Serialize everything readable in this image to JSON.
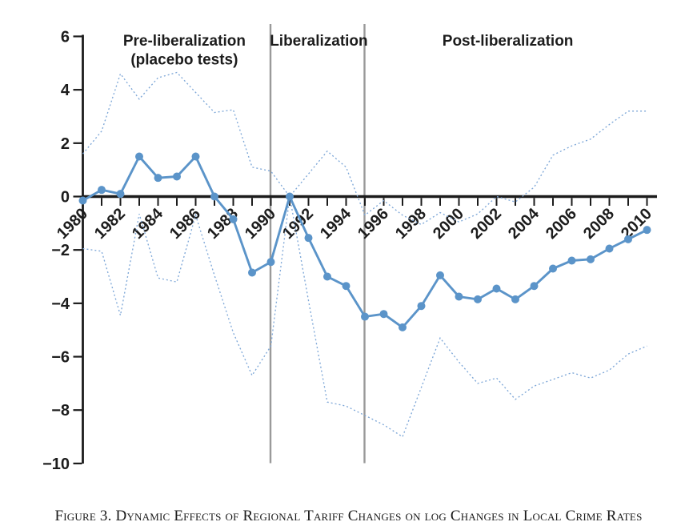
{
  "figure": {
    "caption": "Figure 3. Dynamic Effects of Regional Tariff Changes on log Changes in Local Crime Rates"
  },
  "chart_data": {
    "type": "line",
    "title": "",
    "xlabel": "",
    "ylabel": "",
    "ylim": [
      -10,
      6
    ],
    "y_ticks": [
      6,
      4,
      2,
      0,
      -2,
      -4,
      -6,
      -8,
      -10
    ],
    "x": [
      1980,
      1981,
      1982,
      1983,
      1984,
      1985,
      1986,
      1987,
      1988,
      1989,
      1990,
      1991,
      1992,
      1993,
      1994,
      1995,
      1996,
      1997,
      1998,
      1999,
      2000,
      2001,
      2002,
      2003,
      2004,
      2005,
      2006,
      2007,
      2008,
      2009,
      2010
    ],
    "x_tick_label_years": [
      1980,
      1982,
      1984,
      1986,
      1988,
      1990,
      1992,
      1994,
      1996,
      1998,
      2000,
      2002,
      2004,
      2006,
      2008,
      2010
    ],
    "series": [
      {
        "name": "point-estimate",
        "style": "solid-markers",
        "values": [
          -0.15,
          0.25,
          0.1,
          1.5,
          0.7,
          0.75,
          1.5,
          0.0,
          -0.85,
          -2.85,
          -2.45,
          0.0,
          -1.55,
          -3.0,
          -3.35,
          -4.5,
          -4.4,
          -4.9,
          -4.1,
          -2.95,
          -3.75,
          -3.85,
          -3.45,
          -3.85,
          -3.35,
          -2.7,
          -2.4,
          -2.35,
          -1.95,
          -1.6,
          -1.25
        ]
      },
      {
        "name": "upper-95-ci",
        "style": "dashed",
        "values": [
          1.6,
          2.45,
          4.6,
          3.65,
          4.45,
          4.65,
          3.9,
          3.15,
          3.25,
          1.1,
          0.95,
          0.0,
          0.85,
          1.7,
          1.1,
          -0.7,
          -0.15,
          -0.7,
          -1.05,
          -0.6,
          -0.95,
          -0.65,
          0.0,
          -0.2,
          0.35,
          1.55,
          1.9,
          2.15,
          2.7,
          3.2,
          3.2
        ]
      },
      {
        "name": "lower-95-ci",
        "style": "dashed",
        "values": [
          -1.95,
          -2.05,
          -4.45,
          -0.65,
          -3.05,
          -3.2,
          -0.7,
          -2.95,
          -5.1,
          -6.7,
          -5.6,
          0.0,
          -3.9,
          -7.7,
          -7.85,
          -8.2,
          -8.55,
          -9.0,
          -7.15,
          -5.3,
          -6.2,
          -7.0,
          -6.8,
          -7.6,
          -7.1,
          -6.85,
          -6.6,
          -6.8,
          -6.5,
          -5.9,
          -5.6
        ]
      }
    ],
    "vlines": [
      1990,
      1995
    ],
    "regions": [
      {
        "lines": [
          "Pre-liberalization",
          "(placebo tests)"
        ],
        "center_year": 1985.4
      },
      {
        "lines": [
          "Liberalization"
        ],
        "center_year": 1992.55
      },
      {
        "lines": [
          "Post-liberalization"
        ],
        "center_year": 2002.6
      }
    ],
    "legend": "none",
    "grid": false,
    "colors": {
      "line": "#5b94c9",
      "marker": "#5b94c9",
      "ci": "#7fa8d8",
      "vline": "#9a9a9a",
      "axis": "#1c1c1c"
    }
  }
}
